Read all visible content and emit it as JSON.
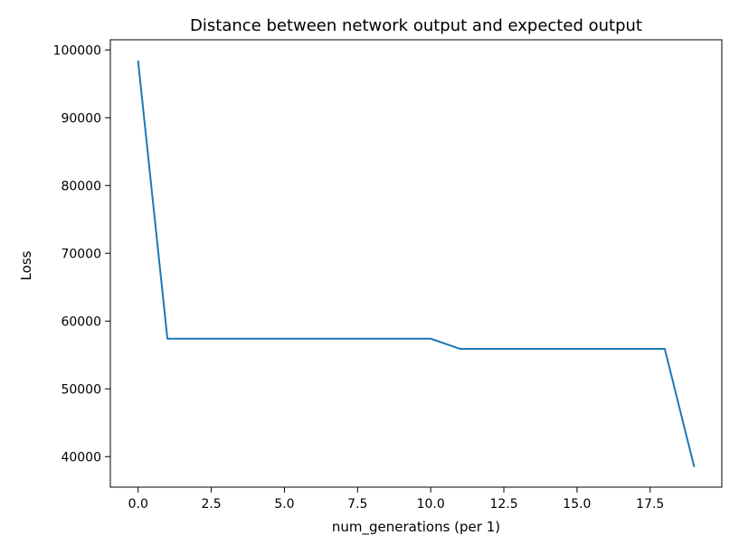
{
  "chart_data": {
    "type": "line",
    "title": "Distance between network output and expected output",
    "xlabel": "num_generations (per 1)",
    "ylabel": "Loss",
    "xlim": [
      -0.95,
      19.95
    ],
    "ylim": [
      35500,
      101500
    ],
    "xticks": [
      0.0,
      2.5,
      5.0,
      7.5,
      10.0,
      12.5,
      15.0,
      17.5
    ],
    "xtick_labels": [
      "0.0",
      "2.5",
      "5.0",
      "7.5",
      "10.0",
      "12.5",
      "15.0",
      "17.5"
    ],
    "yticks": [
      40000,
      50000,
      60000,
      70000,
      80000,
      90000,
      100000
    ],
    "ytick_labels": [
      "40000",
      "50000",
      "60000",
      "70000",
      "80000",
      "90000",
      "100000"
    ],
    "grid": false,
    "series": [
      {
        "color": "#1f77b4",
        "x": [
          0,
          1,
          2,
          3,
          4,
          5,
          6,
          7,
          8,
          9,
          10,
          11,
          12,
          13,
          14,
          15,
          16,
          17,
          18,
          19
        ],
        "y": [
          98300,
          57400,
          57400,
          57400,
          57400,
          57400,
          57400,
          57400,
          57400,
          57400,
          57400,
          55900,
          55900,
          55900,
          55900,
          55900,
          55900,
          55900,
          55900,
          38600
        ]
      }
    ]
  }
}
